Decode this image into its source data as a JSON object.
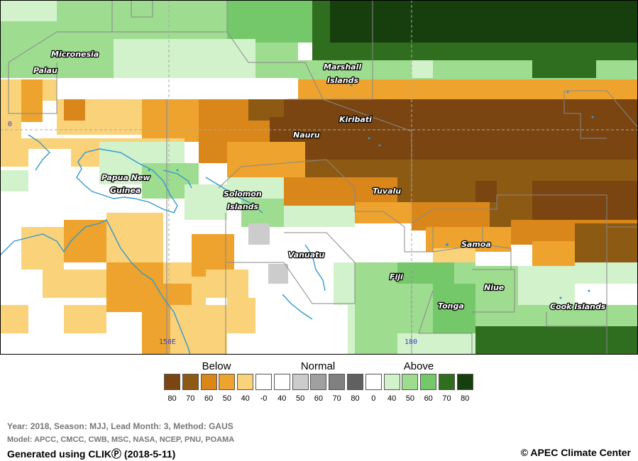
{
  "map": {
    "labels": {
      "micronesia": "Micronesia",
      "palau": "Palau",
      "marshall_1": "Marshall",
      "marshall_2": "Islands",
      "kiribati": "Kiribati",
      "nauru": "Nauru",
      "png_1": "Papua New",
      "png_2": "Guinea",
      "solomon_1": "Solomon",
      "solomon_2": "Islands",
      "tuvalu": "Tuvalu",
      "vanuatu": "Vanuatu",
      "fiji": "Fiji",
      "samoa": "Samoa",
      "niue": "Niue",
      "tonga": "Tonga",
      "cook": "Cook Islands"
    },
    "coords": {
      "lat0": "0",
      "lon150": "150E",
      "lon180": "180"
    },
    "colors": {
      "land_outline": "#3399cc",
      "boundary": "#888888"
    }
  },
  "legend": {
    "headers": {
      "below": "Below",
      "normal": "Normal",
      "above": "Above"
    },
    "swatches": [
      "#7a4510",
      "#8c5a13",
      "#d9861a",
      "#eda32e",
      "#fad27a",
      "#ffffff",
      "#ffffff",
      "#cccccc",
      "#a0a0a0",
      "#808080",
      "#606060",
      "#ffffff",
      "#d2f2cc",
      "#9edc90",
      "#75c86a",
      "#2f6e1e",
      "#173f0e"
    ],
    "ticks": [
      "80",
      "70",
      "60",
      "50",
      "40",
      "-0",
      "40",
      "50",
      "60",
      "70",
      "80",
      "0",
      "40",
      "50",
      "60",
      "70",
      "80"
    ]
  },
  "footer": {
    "info": "Year: 2018, Season: MJJ, Lead Month: 3, Method: GAUS",
    "model": "Model: APCC, CMCC, CWB, MSC, NASA, NCEP, PNU, POAMA",
    "generated": "Generated using CLIKⓅ (2018-5-11)",
    "copyright": "© APEC Climate Center"
  }
}
